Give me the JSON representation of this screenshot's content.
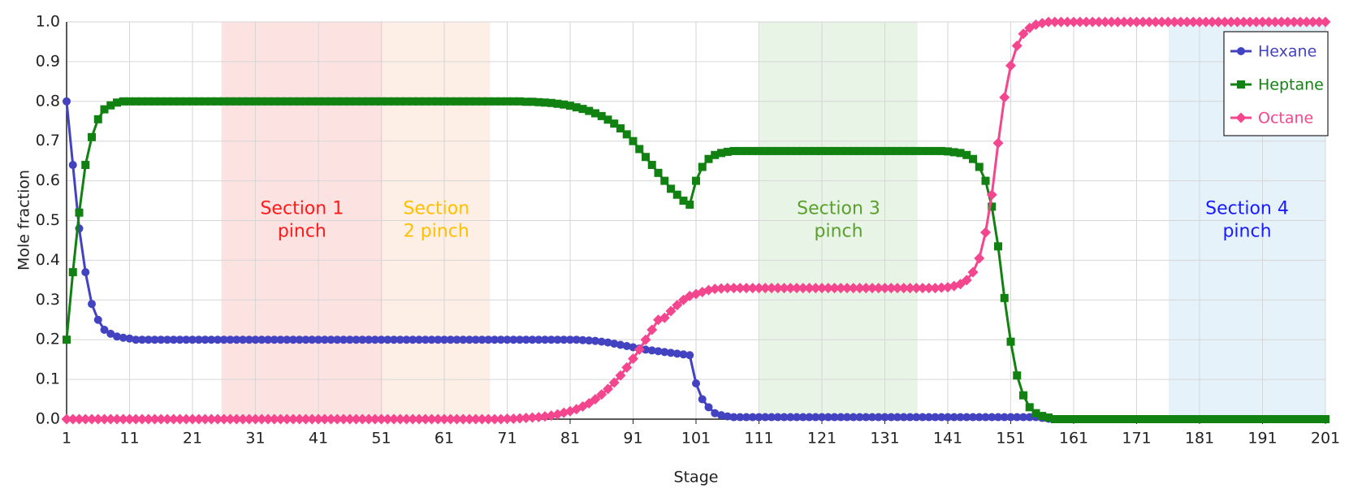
{
  "chart_data": {
    "type": "line",
    "xlabel": "Stage",
    "ylabel": "Mole fraction",
    "xlim": [
      1,
      201
    ],
    "ylim": [
      0,
      1
    ],
    "xticks": [
      1,
      11,
      21,
      31,
      41,
      51,
      61,
      71,
      81,
      91,
      101,
      111,
      121,
      131,
      141,
      151,
      161,
      171,
      181,
      191,
      201
    ],
    "yticks": [
      {
        "value": 0,
        "label": "0.0"
      },
      0.1,
      0.2,
      0.3,
      0.4,
      0.5,
      0.6,
      0.7,
      0.8,
      0.9,
      {
        "value": 1,
        "label": "1.0"
      }
    ],
    "grid": true,
    "legend": "upper right",
    "regions": [
      {
        "label": [
          "Section 1",
          "pinch"
        ],
        "xrange": [
          25.6,
          51.2
        ],
        "color": "#fde2e2",
        "text_color": "#ff1a1a"
      },
      {
        "label": [
          "Section",
          "2 pinch"
        ],
        "xrange": [
          51.2,
          68.3
        ],
        "color": "#fdefe6",
        "text_color": "#ffc000"
      },
      {
        "label": [
          "Section 3",
          "pinch"
        ],
        "xrange": [
          111.1,
          136.2
        ],
        "color": "#e8f4e6",
        "text_color": "#5aa02c"
      },
      {
        "label": [
          "Section 4",
          "pinch"
        ],
        "xrange": [
          176.1,
          201
        ],
        "color": "#e6f2fa",
        "text_color": "#1a1aff"
      }
    ],
    "x": [
      1,
      2,
      3,
      4,
      5,
      6,
      7,
      8,
      9,
      10,
      11,
      12,
      13,
      14,
      15,
      16,
      17,
      18,
      19,
      20,
      21,
      22,
      23,
      24,
      25,
      26,
      27,
      28,
      29,
      30,
      31,
      32,
      33,
      34,
      35,
      36,
      37,
      38,
      39,
      40,
      41,
      42,
      43,
      44,
      45,
      46,
      47,
      48,
      49,
      50,
      51,
      52,
      53,
      54,
      55,
      56,
      57,
      58,
      59,
      60,
      61,
      62,
      63,
      64,
      65,
      66,
      67,
      68,
      69,
      70,
      71,
      72,
      73,
      74,
      75,
      76,
      77,
      78,
      79,
      80,
      81,
      82,
      83,
      84,
      85,
      86,
      87,
      88,
      89,
      90,
      91,
      92,
      93,
      94,
      95,
      96,
      97,
      98,
      99,
      100,
      101,
      102,
      103,
      104,
      105,
      106,
      107,
      108,
      109,
      110,
      111,
      112,
      113,
      114,
      115,
      116,
      117,
      118,
      119,
      120,
      121,
      122,
      123,
      124,
      125,
      126,
      127,
      128,
      129,
      130,
      131,
      132,
      133,
      134,
      135,
      136,
      137,
      138,
      139,
      140,
      141,
      142,
      143,
      144,
      145,
      146,
      147,
      148,
      149,
      150,
      151,
      152,
      153,
      154,
      155,
      156,
      157,
      158,
      159,
      160,
      161,
      162,
      163,
      164,
      165,
      166,
      167,
      168,
      169,
      170,
      171,
      172,
      173,
      174,
      175,
      176,
      177,
      178,
      179,
      180,
      181,
      182,
      183,
      184,
      185,
      186,
      187,
      188,
      189,
      190,
      191,
      192,
      193,
      194,
      195,
      196,
      197,
      198,
      199,
      200,
      201
    ],
    "series": [
      {
        "name": "Hexane",
        "color": "#4343c2",
        "marker": "circle",
        "values": [
          0.8,
          0.64,
          0.48,
          0.37,
          0.29,
          0.25,
          0.225,
          0.215,
          0.208,
          0.205,
          0.203,
          0.2,
          0.2,
          0.2,
          0.2,
          0.2,
          0.2,
          0.2,
          0.2,
          0.2,
          0.2,
          0.2,
          0.2,
          0.2,
          0.2,
          0.2,
          0.2,
          0.2,
          0.2,
          0.2,
          0.2,
          0.2,
          0.2,
          0.2,
          0.2,
          0.2,
          0.2,
          0.2,
          0.2,
          0.2,
          0.2,
          0.2,
          0.2,
          0.2,
          0.2,
          0.2,
          0.2,
          0.2,
          0.2,
          0.2,
          0.2,
          0.2,
          0.2,
          0.2,
          0.2,
          0.2,
          0.2,
          0.2,
          0.2,
          0.2,
          0.2,
          0.2,
          0.2,
          0.2,
          0.2,
          0.2,
          0.2,
          0.2,
          0.2,
          0.2,
          0.2,
          0.2,
          0.2,
          0.2,
          0.2,
          0.2,
          0.2,
          0.2,
          0.2,
          0.2,
          0.2,
          0.2,
          0.199,
          0.198,
          0.197,
          0.195,
          0.193,
          0.19,
          0.187,
          0.184,
          0.181,
          0.178,
          0.175,
          0.173,
          0.171,
          0.169,
          0.167,
          0.165,
          0.163,
          0.161,
          0.09,
          0.05,
          0.03,
          0.015,
          0.01,
          0.007,
          0.005,
          0.005,
          0.005,
          0.005,
          0.005,
          0.005,
          0.005,
          0.005,
          0.005,
          0.005,
          0.005,
          0.005,
          0.005,
          0.005,
          0.005,
          0.005,
          0.005,
          0.005,
          0.005,
          0.005,
          0.005,
          0.005,
          0.005,
          0.005,
          0.005,
          0.005,
          0.005,
          0.005,
          0.005,
          0.005,
          0.005,
          0.005,
          0.005,
          0.005,
          0.005,
          0.005,
          0.005,
          0.005,
          0.005,
          0.005,
          0.005,
          0.005,
          0.005,
          0.005,
          0.005,
          0.005,
          0.005,
          0.005,
          0.005,
          0.003,
          0.001,
          0,
          0,
          0,
          0,
          0,
          0,
          0,
          0,
          0,
          0,
          0,
          0,
          0,
          0,
          0,
          0,
          0,
          0,
          0,
          0,
          0,
          0,
          0,
          0,
          0,
          0,
          0,
          0,
          0,
          0,
          0,
          0,
          0,
          0,
          0,
          0,
          0,
          0,
          0,
          0,
          0,
          0,
          0,
          0
        ]
      },
      {
        "name": "Heptane",
        "color": "#118211",
        "marker": "square",
        "values": [
          0.2,
          0.37,
          0.52,
          0.64,
          0.71,
          0.755,
          0.78,
          0.79,
          0.797,
          0.8,
          0.8,
          0.8,
          0.8,
          0.8,
          0.8,
          0.8,
          0.8,
          0.8,
          0.8,
          0.8,
          0.8,
          0.8,
          0.8,
          0.8,
          0.8,
          0.8,
          0.8,
          0.8,
          0.8,
          0.8,
          0.8,
          0.8,
          0.8,
          0.8,
          0.8,
          0.8,
          0.8,
          0.8,
          0.8,
          0.8,
          0.8,
          0.8,
          0.8,
          0.8,
          0.8,
          0.8,
          0.8,
          0.8,
          0.8,
          0.8,
          0.8,
          0.8,
          0.8,
          0.8,
          0.8,
          0.8,
          0.8,
          0.8,
          0.8,
          0.8,
          0.8,
          0.8,
          0.8,
          0.8,
          0.8,
          0.8,
          0.8,
          0.8,
          0.8,
          0.8,
          0.8,
          0.8,
          0.8,
          0.799,
          0.799,
          0.798,
          0.797,
          0.796,
          0.794,
          0.792,
          0.789,
          0.785,
          0.781,
          0.776,
          0.77,
          0.763,
          0.754,
          0.744,
          0.732,
          0.717,
          0.7,
          0.68,
          0.66,
          0.64,
          0.62,
          0.6,
          0.58,
          0.565,
          0.55,
          0.54,
          0.6,
          0.635,
          0.655,
          0.665,
          0.67,
          0.673,
          0.675,
          0.675,
          0.675,
          0.675,
          0.675,
          0.675,
          0.675,
          0.675,
          0.675,
          0.675,
          0.675,
          0.675,
          0.675,
          0.675,
          0.675,
          0.675,
          0.675,
          0.675,
          0.675,
          0.675,
          0.675,
          0.675,
          0.675,
          0.675,
          0.675,
          0.675,
          0.675,
          0.675,
          0.675,
          0.675,
          0.675,
          0.675,
          0.675,
          0.675,
          0.674,
          0.672,
          0.67,
          0.665,
          0.655,
          0.635,
          0.6,
          0.535,
          0.435,
          0.305,
          0.195,
          0.11,
          0.06,
          0.03,
          0.015,
          0.008,
          0.004,
          0,
          0,
          0,
          0,
          0,
          0,
          0,
          0,
          0,
          0,
          0,
          0,
          0,
          0,
          0,
          0,
          0,
          0,
          0,
          0,
          0,
          0,
          0,
          0,
          0,
          0,
          0,
          0,
          0,
          0,
          0,
          0,
          0,
          0,
          0,
          0,
          0,
          0,
          0,
          0,
          0,
          0,
          0,
          0
        ]
      },
      {
        "name": "Octane",
        "color": "#f4468e",
        "marker": "diamond",
        "values": [
          0,
          0,
          0,
          0,
          0,
          0,
          0,
          0,
          0,
          0,
          0,
          0,
          0,
          0,
          0,
          0,
          0,
          0,
          0,
          0,
          0,
          0,
          0,
          0,
          0,
          0,
          0,
          0,
          0,
          0,
          0,
          0,
          0,
          0,
          0,
          0,
          0,
          0,
          0,
          0,
          0,
          0,
          0,
          0,
          0,
          0,
          0,
          0,
          0,
          0,
          0,
          0,
          0,
          0,
          0,
          0,
          0,
          0,
          0,
          0,
          0,
          0,
          0,
          0,
          0,
          0,
          0,
          0,
          0,
          0,
          0.001,
          0.001,
          0.002,
          0.003,
          0.004,
          0.005,
          0.007,
          0.009,
          0.012,
          0.016,
          0.02,
          0.025,
          0.032,
          0.04,
          0.05,
          0.062,
          0.076,
          0.092,
          0.11,
          0.13,
          0.152,
          0.175,
          0.2,
          0.225,
          0.25,
          0.255,
          0.272,
          0.287,
          0.3,
          0.31,
          0.315,
          0.32,
          0.325,
          0.328,
          0.329,
          0.33,
          0.33,
          0.33,
          0.33,
          0.33,
          0.33,
          0.33,
          0.33,
          0.33,
          0.33,
          0.33,
          0.33,
          0.33,
          0.33,
          0.33,
          0.33,
          0.33,
          0.33,
          0.33,
          0.33,
          0.33,
          0.33,
          0.33,
          0.33,
          0.33,
          0.33,
          0.33,
          0.33,
          0.33,
          0.33,
          0.33,
          0.33,
          0.33,
          0.33,
          0.331,
          0.332,
          0.335,
          0.34,
          0.35,
          0.37,
          0.405,
          0.47,
          0.565,
          0.695,
          0.81,
          0.89,
          0.94,
          0.97,
          0.985,
          0.993,
          0.997,
          1,
          1,
          1,
          1,
          1,
          1,
          1,
          1,
          1,
          1,
          1,
          1,
          1,
          1,
          1,
          1,
          1,
          1,
          1,
          1,
          1,
          1,
          1,
          1,
          1,
          1,
          1,
          1,
          1,
          1,
          1,
          1,
          1,
          1,
          1,
          1,
          1,
          1,
          1,
          1,
          1,
          1,
          1,
          1,
          1
        ]
      }
    ]
  }
}
